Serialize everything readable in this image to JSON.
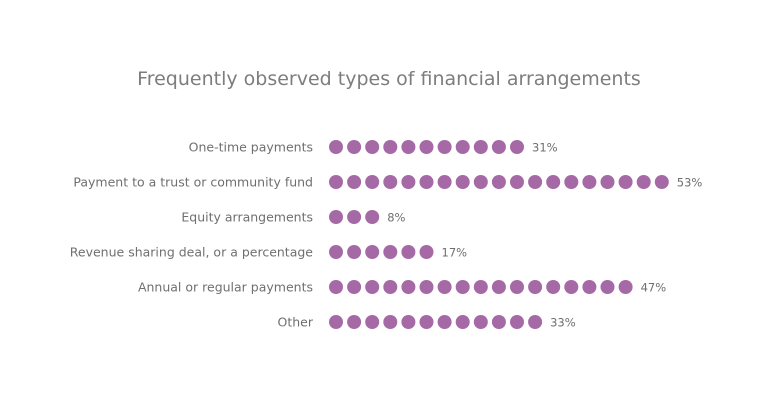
{
  "chart_data": {
    "type": "dot",
    "title": "Frequently observed types of financial arrangements",
    "categories": [
      "One-time payments",
      "Payment to a trust or community fund",
      "Equity arrangements",
      "Revenue sharing deal, or a percentage",
      "Annual or regular payments",
      "Other"
    ],
    "values": [
      31,
      53,
      8,
      17,
      47,
      33
    ],
    "value_labels": [
      "31%",
      "53%",
      "8%",
      "17%",
      "47%",
      "33%"
    ],
    "dot_counts": [
      11,
      19,
      3,
      6,
      17,
      12
    ],
    "unit": "%",
    "grid": false,
    "legend": "none",
    "colors": {
      "dot": "#a569a6",
      "title": "#7d7d7d",
      "label": "#6f6f6f",
      "background": "#ffffff"
    }
  }
}
